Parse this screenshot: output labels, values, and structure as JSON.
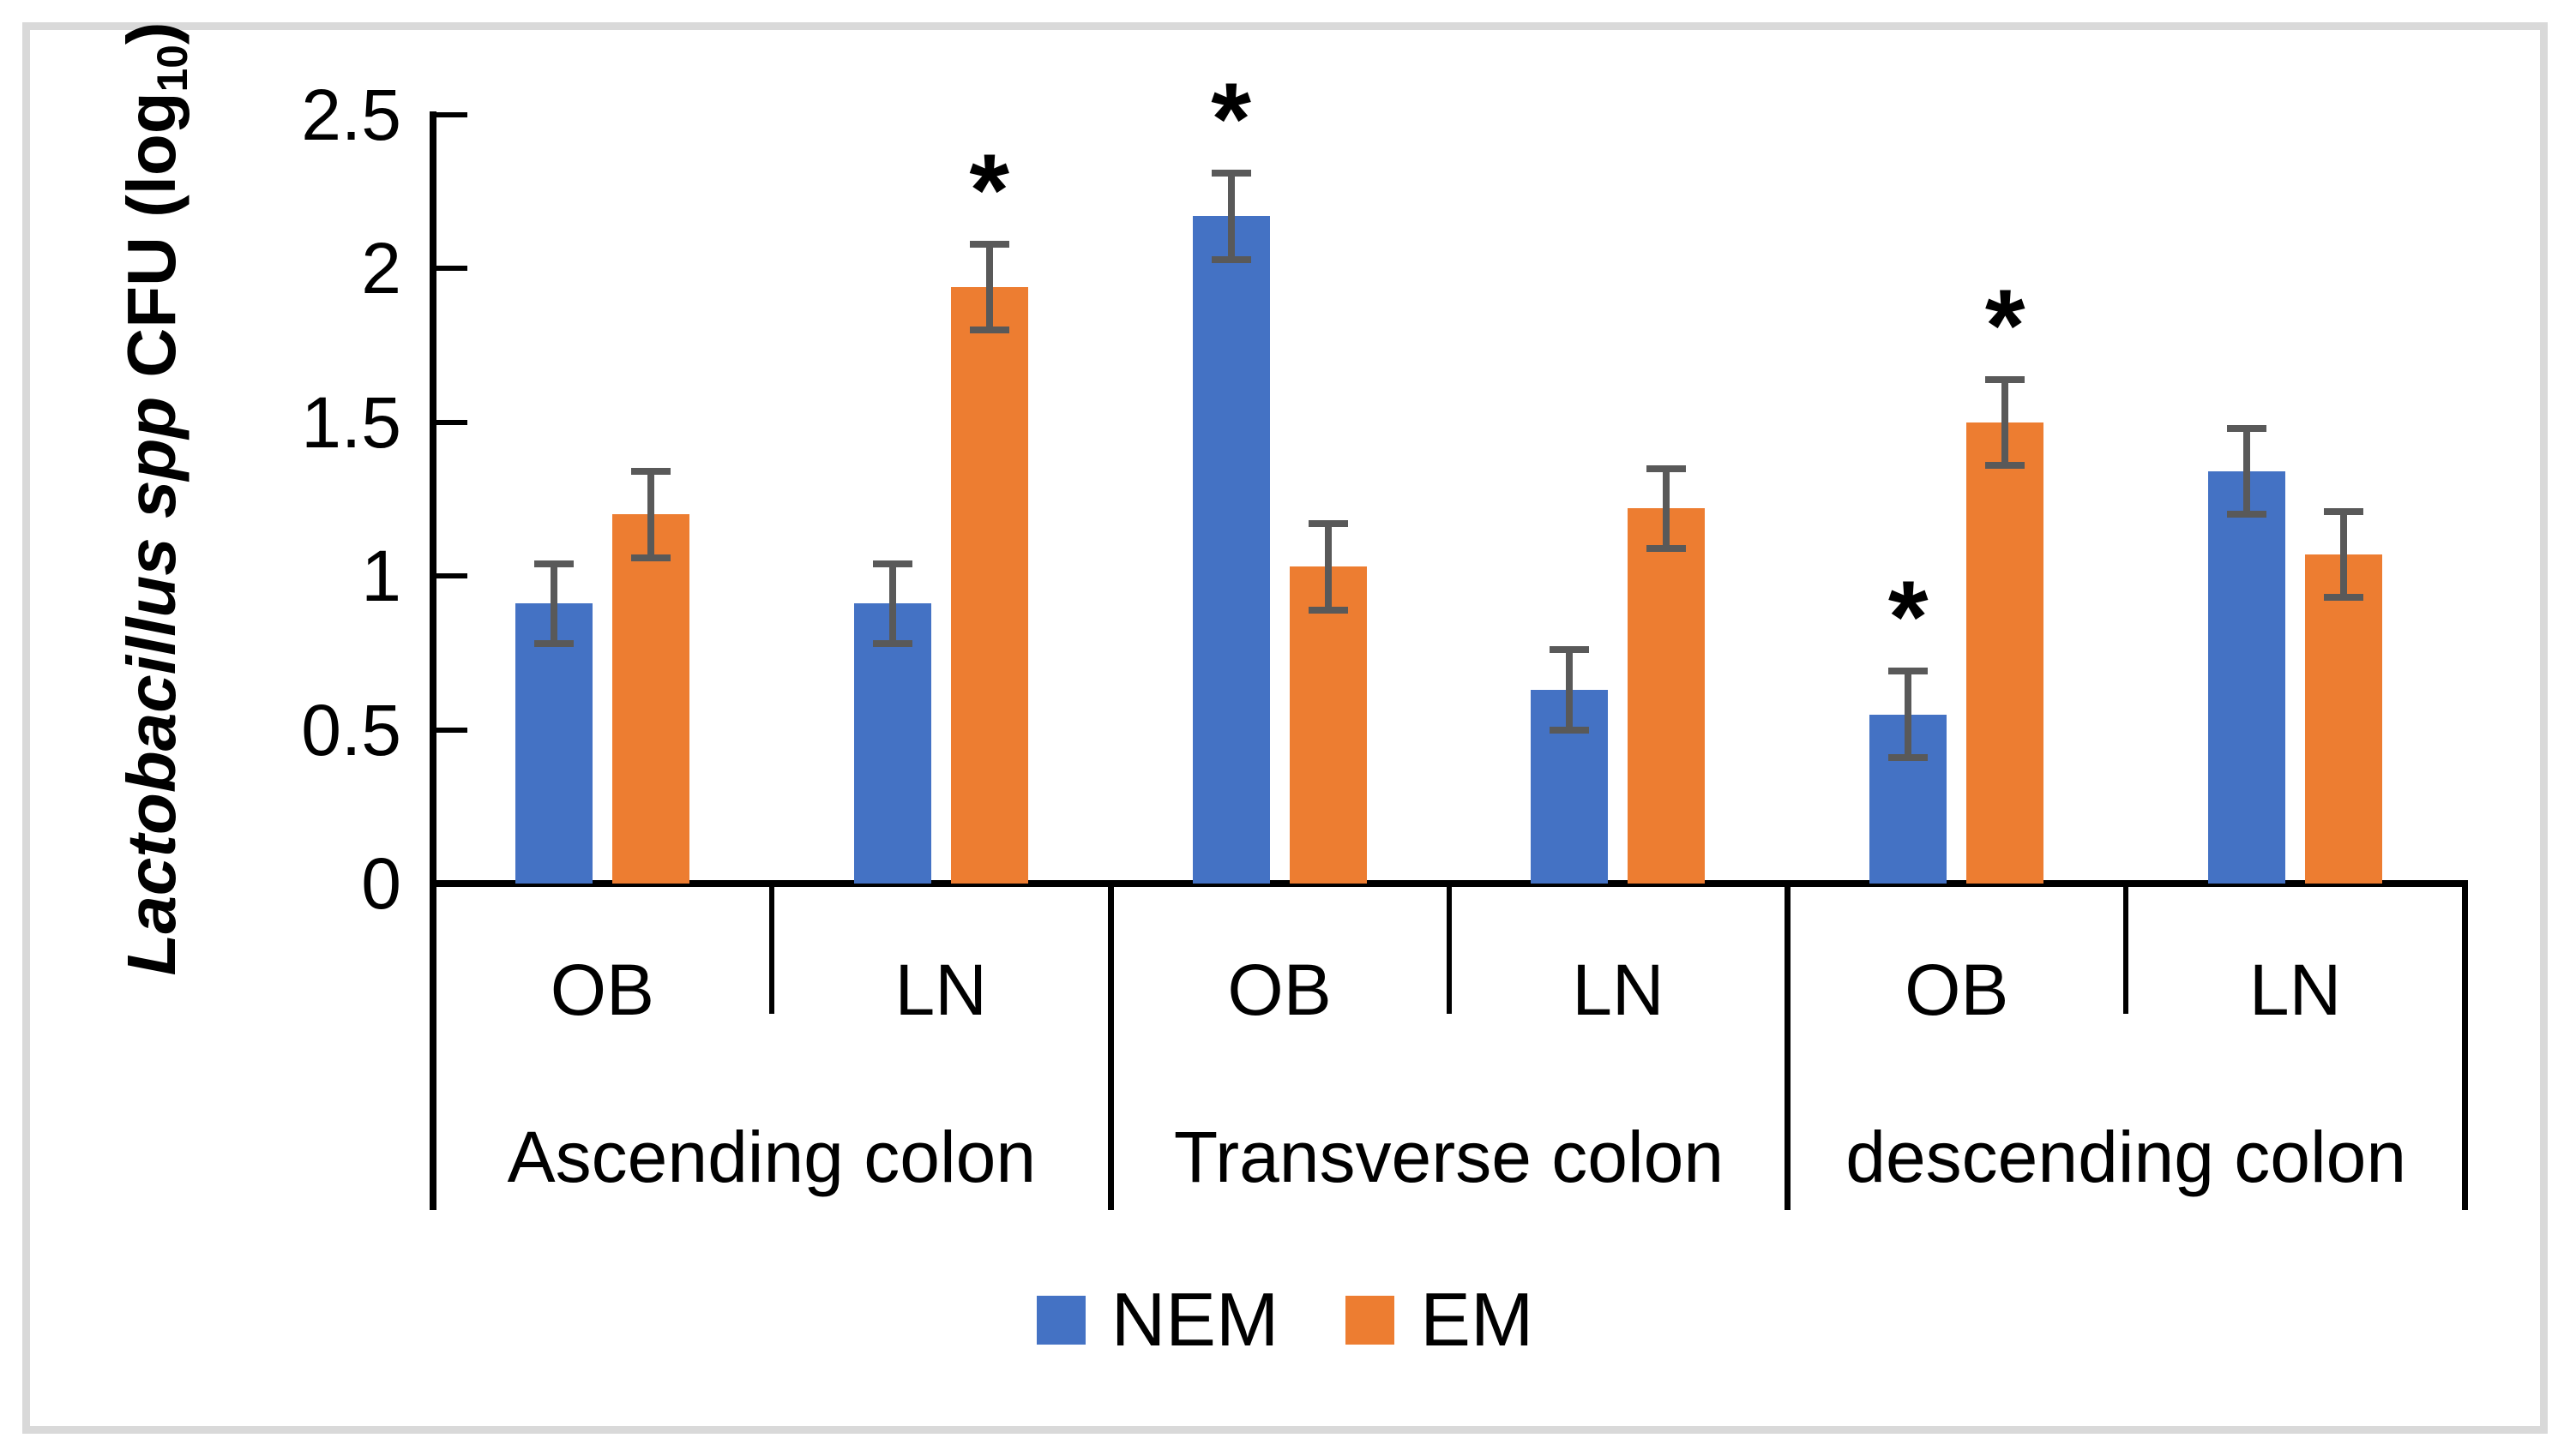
{
  "chart_data": {
    "type": "bar",
    "title": "",
    "ylabel": {
      "italic": "Lactobacillus spp",
      "normal": " CFU (log",
      "sub": "10",
      "close": ")"
    },
    "ylim": [
      0,
      2.5
    ],
    "yticks": [
      0,
      0.5,
      1,
      1.5,
      2,
      2.5
    ],
    "ytick_labels": [
      "0",
      "0.5",
      "1",
      "1.5",
      "2",
      "2.5"
    ],
    "grid": false,
    "legend_position": "bottom",
    "significance_marker": "*",
    "colors": {
      "nem_blue": "#4472C4",
      "em_orange": "#ED7D31",
      "error_bar": "#595959",
      "axis": "#000000",
      "frame_border": "#D9D9D9"
    },
    "series": [
      {
        "name": "NEM",
        "color": "#4472C4"
      },
      {
        "name": "EM",
        "color": "#ED7D31"
      }
    ],
    "sections": [
      {
        "label": "Ascending colon",
        "subgroups": [
          {
            "label": "OB",
            "bars": [
              {
                "series": "NEM",
                "value": 0.91,
                "error": 0.13,
                "significant": false
              },
              {
                "series": "EM",
                "value": 1.2,
                "error": 0.14,
                "significant": false
              }
            ]
          },
          {
            "label": "LN",
            "bars": [
              {
                "series": "NEM",
                "value": 0.91,
                "error": 0.13,
                "significant": false
              },
              {
                "series": "EM",
                "value": 1.94,
                "error": 0.14,
                "significant": true
              }
            ]
          }
        ]
      },
      {
        "label": "Transverse colon",
        "subgroups": [
          {
            "label": "OB",
            "bars": [
              {
                "series": "NEM",
                "value": 2.17,
                "error": 0.14,
                "significant": true
              },
              {
                "series": "EM",
                "value": 1.03,
                "error": 0.14,
                "significant": false
              }
            ]
          },
          {
            "label": "LN",
            "bars": [
              {
                "series": "NEM",
                "value": 0.63,
                "error": 0.13,
                "significant": false
              },
              {
                "series": "EM",
                "value": 1.22,
                "error": 0.13,
                "significant": false
              }
            ]
          }
        ]
      },
      {
        "label": "descending colon",
        "subgroups": [
          {
            "label": "OB",
            "bars": [
              {
                "series": "NEM",
                "value": 0.55,
                "error": 0.14,
                "significant": true
              },
              {
                "series": "EM",
                "value": 1.5,
                "error": 0.14,
                "significant": true
              }
            ]
          },
          {
            "label": "LN",
            "bars": [
              {
                "series": "NEM",
                "value": 1.34,
                "error": 0.14,
                "significant": false
              },
              {
                "series": "EM",
                "value": 1.07,
                "error": 0.14,
                "significant": false
              }
            ]
          }
        ]
      }
    ]
  }
}
